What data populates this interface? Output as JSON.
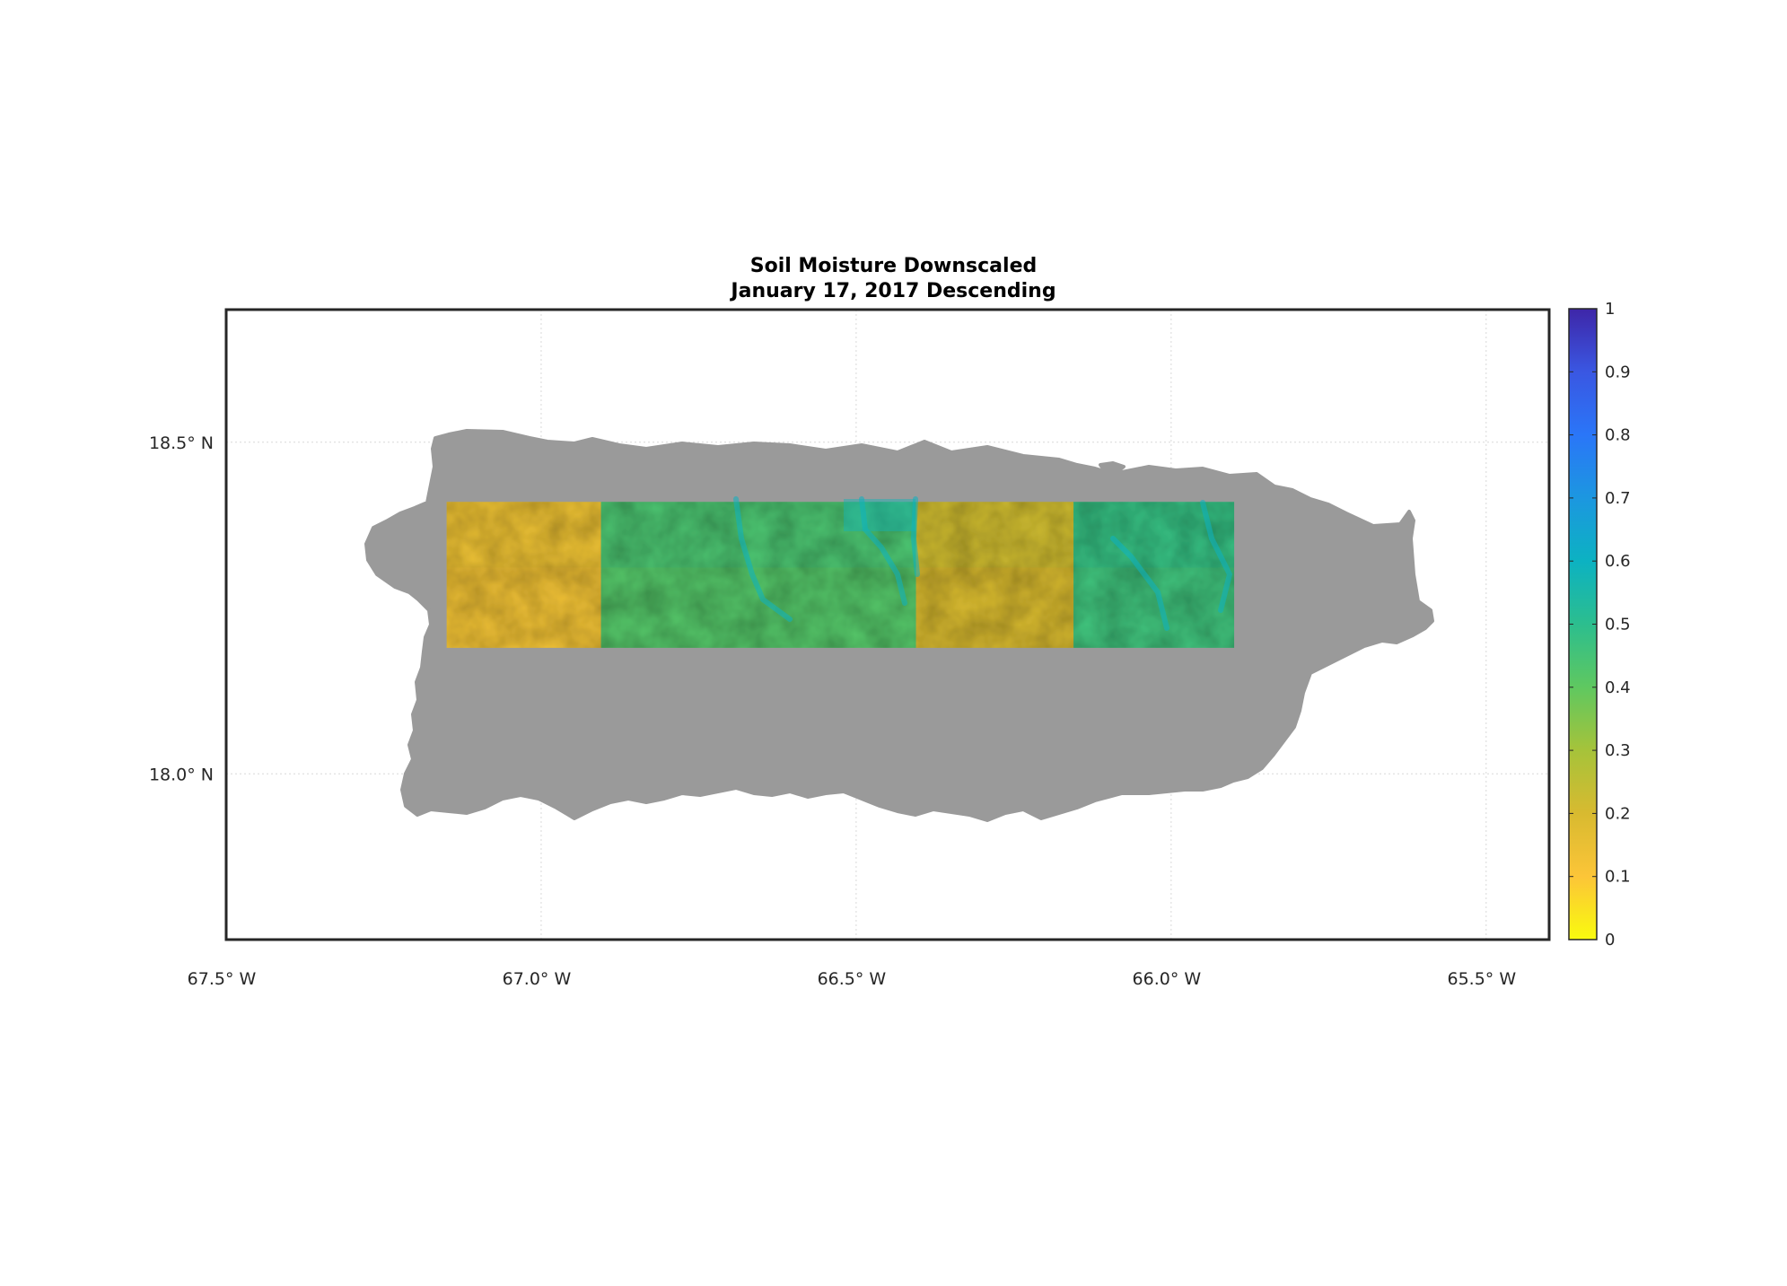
{
  "map": {
    "title": "Soil Moisture Downscaled",
    "subtitle": "January 17, 2017 Descending",
    "lon_range": [
      -67.5,
      -65.4
    ],
    "lat_range": [
      17.75,
      18.7
    ],
    "lon_ticks": [
      {
        "value": -67.5,
        "label": "67.5° W"
      },
      {
        "value": -67.0,
        "label": "67.0° W"
      },
      {
        "value": -66.5,
        "label": "66.5° W"
      },
      {
        "value": -66.0,
        "label": "66.0° W"
      },
      {
        "value": -65.5,
        "label": "65.5° W"
      }
    ],
    "lat_ticks": [
      {
        "value": 18.5,
        "label": "18.5° N"
      },
      {
        "value": 18.0,
        "label": "18.0° N"
      }
    ],
    "grid": true,
    "land_color": "#9a9a9a",
    "coverage": {
      "lon": [
        -67.15,
        -65.9
      ],
      "lat": [
        18.19,
        18.41
      ]
    },
    "tiles": [
      {
        "lon": [
          -67.15,
          -66.905
        ],
        "mean": 0.13
      },
      {
        "lon": [
          -66.905,
          -66.405
        ],
        "mean": 0.42
      },
      {
        "lon": [
          -66.405,
          -66.155
        ],
        "mean": 0.2
      },
      {
        "lon": [
          -66.155,
          -65.9
        ],
        "mean": 0.46
      }
    ]
  },
  "colorbar": {
    "range": [
      0,
      1
    ],
    "ticks": [
      "0",
      "0.1",
      "0.2",
      "0.3",
      "0.4",
      "0.5",
      "0.6",
      "0.7",
      "0.8",
      "0.9",
      "1"
    ],
    "stops": [
      "#f9fb0e",
      "#fcc538",
      "#d8ba30",
      "#a6c33a",
      "#5fc860",
      "#2cbe8e",
      "#0cb2c2",
      "#1c97e0",
      "#2a76f8",
      "#3a57e2",
      "#3e26a8"
    ]
  }
}
